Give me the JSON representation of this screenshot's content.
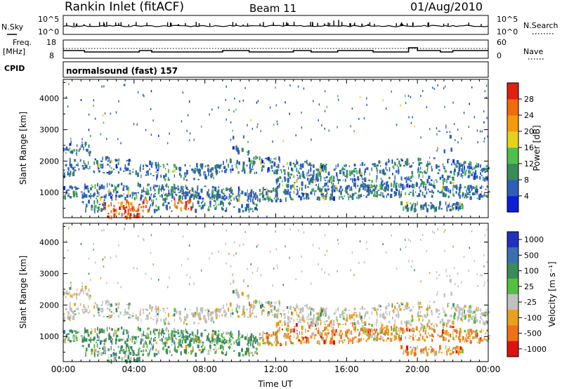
{
  "header": {
    "station": "Rankin Inlet (fitACF)",
    "beam": "Beam 11",
    "date": "01/Aug/2010"
  },
  "noise_panel": {
    "left_label": "N.Sky",
    "left_ticks": [
      "10^5",
      "10^0"
    ],
    "right_label": "N.Search",
    "right_ticks": [
      "10^5",
      "10^0"
    ]
  },
  "freq_panel": {
    "left_label_1": "Freq.",
    "left_label_2": "[MHz]",
    "left_ticks": [
      "18",
      "8"
    ],
    "right_label": "Nave",
    "right_ticks": [
      "60",
      "0"
    ]
  },
  "cpid": {
    "label": "CPID",
    "program": "normalsound (fast) 157"
  },
  "colors": {
    "power": [
      "#0a1fd6",
      "#2e5fb8",
      "#3a8a5a",
      "#4fbf4f",
      "#e5d21e",
      "#f59a0a",
      "#f26a0a",
      "#e02010"
    ],
    "velocity": [
      "#2030c0",
      "#3a70b0",
      "#3a8a5a",
      "#55c040",
      "#c0c0c0",
      "#e8a020",
      "#f07018",
      "#e01010"
    ]
  },
  "chart_data": [
    {
      "type": "heatmap",
      "name": "power",
      "ylabel": "Slant Range [km]",
      "yticks": [
        1000,
        2000,
        3000,
        4000
      ],
      "ylim": [
        200,
        4600
      ],
      "colorbar": {
        "label": "Power [dB]",
        "ticks": [
          4,
          8,
          12,
          16,
          20,
          24,
          28
        ],
        "range": [
          0,
          32
        ]
      }
    },
    {
      "type": "heatmap",
      "name": "velocity",
      "xlabel": "Time UT",
      "xticks": [
        "00:00",
        "04:00",
        "08:00",
        "12:00",
        "16:00",
        "20:00",
        "00:00"
      ],
      "xlim_hours": [
        0,
        24
      ],
      "ylabel": "Slant Range [km]",
      "yticks": [
        1000,
        2000,
        3000,
        4000
      ],
      "ylim": [
        200,
        4600
      ],
      "colorbar": {
        "label": "Velocity [m s⁻¹]",
        "ticks": [
          "1000",
          "500",
          "100",
          "25",
          "-25",
          "-100",
          "-500",
          "-1000"
        ]
      }
    }
  ]
}
